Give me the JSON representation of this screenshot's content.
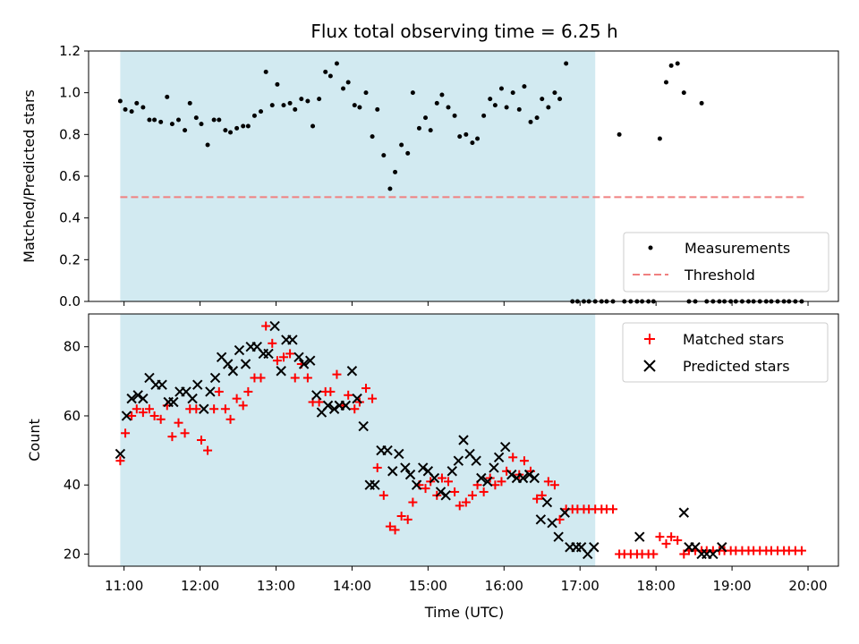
{
  "chart_data": [
    {
      "type": "scatter",
      "title": "Flux total observing time = 6.25 h",
      "xlabel": "",
      "ylabel": "Matched/Predicted stars",
      "xlim": [
        "10:32",
        "20:24"
      ],
      "ylim": [
        0,
        1.2
      ],
      "yticks": [
        "0.0",
        "0.2",
        "0.4",
        "0.6",
        "0.8",
        "1.0",
        "1.2"
      ],
      "shaded_region": {
        "start": "10:57",
        "end": "17:12",
        "color": "#add8e6"
      },
      "threshold": {
        "name": "Threshold",
        "value": 0.5,
        "start": "10:57",
        "end": "19:57",
        "color": "#f08080"
      },
      "legend": {
        "position": "bottom-right",
        "entries": [
          "Measurements",
          "Threshold"
        ]
      },
      "series": [
        {
          "name": "Measurements",
          "marker": "dot",
          "color": "#000000",
          "x": [
            "10:57",
            "11:01",
            "11:06",
            "11:10",
            "11:15",
            "11:20",
            "11:24",
            "11:29",
            "11:34",
            "11:38",
            "11:43",
            "11:48",
            "11:52",
            "11:57",
            "12:01",
            "12:06",
            "12:11",
            "12:15",
            "12:20",
            "12:24",
            "12:29",
            "12:34",
            "12:38",
            "12:43",
            "12:48",
            "12:52",
            "12:57",
            "13:01",
            "13:06",
            "13:11",
            "13:15",
            "13:20",
            "13:25",
            "13:29",
            "13:34",
            "13:39",
            "13:43",
            "13:48",
            "13:53",
            "13:57",
            "14:02",
            "14:06",
            "14:11",
            "14:16",
            "14:20",
            "14:25",
            "14:30",
            "14:34",
            "14:39",
            "14:44",
            "14:48",
            "14:53",
            "14:58",
            "15:02",
            "15:07",
            "15:11",
            "15:16",
            "15:21",
            "15:25",
            "15:30",
            "15:35",
            "15:39",
            "15:44",
            "15:49",
            "15:53",
            "15:58",
            "16:02",
            "16:07",
            "16:12",
            "16:16",
            "16:21",
            "16:26",
            "16:30",
            "16:35",
            "16:40",
            "16:44",
            "16:49",
            "16:54",
            "16:58",
            "17:03",
            "17:07",
            "17:12",
            "17:17",
            "17:21",
            "17:26",
            "17:31",
            "17:35",
            "17:40",
            "17:45",
            "17:49",
            "17:54",
            "17:58",
            "18:03",
            "18:08",
            "18:12",
            "18:17",
            "18:22",
            "18:26",
            "18:31",
            "18:36",
            "18:40",
            "18:45",
            "18:50",
            "18:54",
            "18:59",
            "19:03",
            "19:08",
            "19:13",
            "19:17",
            "19:22",
            "19:27",
            "19:31",
            "19:36",
            "19:41",
            "19:45",
            "19:50",
            "19:55"
          ],
          "y": [
            0.96,
            0.92,
            0.91,
            0.95,
            0.93,
            0.87,
            0.87,
            0.86,
            0.98,
            0.85,
            0.87,
            0.82,
            0.95,
            0.88,
            0.85,
            0.75,
            0.87,
            0.87,
            0.82,
            0.81,
            0.83,
            0.84,
            0.84,
            0.89,
            0.91,
            1.1,
            0.94,
            1.04,
            0.94,
            0.95,
            0.92,
            0.97,
            0.96,
            0.84,
            0.97,
            1.1,
            1.08,
            1.14,
            1.02,
            1.05,
            0.94,
            0.93,
            1.0,
            0.79,
            0.92,
            0.7,
            0.54,
            0.62,
            0.75,
            0.71,
            1.0,
            0.83,
            0.88,
            0.82,
            0.95,
            0.99,
            0.93,
            0.89,
            0.79,
            0.8,
            0.76,
            0.78,
            0.89,
            0.97,
            0.94,
            1.02,
            0.93,
            1.0,
            0.92,
            1.03,
            0.86,
            0.88,
            0.97,
            0.93,
            1.0,
            0.97,
            1.14,
            0.0,
            0.0,
            0.0,
            0.0,
            0.0,
            0.0,
            0.0,
            0.0,
            0.8,
            0.0,
            0.0,
            0.0,
            0.0,
            0.0,
            0.0,
            0.78,
            1.05,
            1.13,
            1.14,
            1.0,
            0.0,
            0.0,
            0.95,
            0.0,
            0.0,
            0.0,
            0.0,
            0.0,
            0.0,
            0.0,
            0.0,
            0.0,
            0.0,
            0.0,
            0.0,
            0.0,
            0.0,
            0.0,
            0.0,
            0.0
          ]
        }
      ]
    },
    {
      "type": "scatter",
      "title": "",
      "xlabel": "Time (UTC)",
      "ylabel": "Count",
      "xlim": [
        "10:32",
        "20:24"
      ],
      "ylim": [
        16.5,
        89.5
      ],
      "yticks": [
        "20",
        "40",
        "60",
        "80"
      ],
      "xticks": [
        "11:00",
        "12:00",
        "13:00",
        "14:00",
        "15:00",
        "16:00",
        "17:00",
        "18:00",
        "19:00",
        "20:00"
      ],
      "shaded_region": {
        "start": "10:57",
        "end": "17:12",
        "color": "#add8e6"
      },
      "legend": {
        "position": "top-right",
        "entries": [
          "Matched stars",
          "Predicted stars"
        ]
      },
      "series": [
        {
          "name": "Matched stars",
          "marker": "plus",
          "color": "#ff0000",
          "x": [
            "10:57",
            "11:01",
            "11:06",
            "11:10",
            "11:15",
            "11:20",
            "11:24",
            "11:29",
            "11:34",
            "11:38",
            "11:43",
            "11:48",
            "11:52",
            "11:57",
            "12:01",
            "12:06",
            "12:11",
            "12:15",
            "12:20",
            "12:24",
            "12:29",
            "12:34",
            "12:38",
            "12:43",
            "12:48",
            "12:52",
            "12:57",
            "13:01",
            "13:06",
            "13:11",
            "13:15",
            "13:20",
            "13:25",
            "13:29",
            "13:34",
            "13:39",
            "13:43",
            "13:48",
            "13:53",
            "13:57",
            "14:02",
            "14:06",
            "14:11",
            "14:16",
            "14:20",
            "14:25",
            "14:30",
            "14:34",
            "14:39",
            "14:44",
            "14:48",
            "14:53",
            "14:58",
            "15:02",
            "15:07",
            "15:11",
            "15:16",
            "15:21",
            "15:25",
            "15:30",
            "15:35",
            "15:39",
            "15:44",
            "15:49",
            "15:53",
            "15:58",
            "16:02",
            "16:07",
            "16:12",
            "16:16",
            "16:21",
            "16:26",
            "16:30",
            "16:35",
            "16:40",
            "16:44",
            "16:49",
            "16:54",
            "16:58",
            "17:03",
            "17:07",
            "17:12",
            "17:17",
            "17:21",
            "17:26",
            "17:31",
            "17:35",
            "17:40",
            "17:45",
            "17:49",
            "17:54",
            "17:58",
            "18:03",
            "18:08",
            "18:12",
            "18:17",
            "18:22",
            "18:26",
            "18:31",
            "18:36",
            "18:40",
            "18:45",
            "18:50",
            "18:54",
            "18:59",
            "19:03",
            "19:08",
            "19:13",
            "19:17",
            "19:22",
            "19:27",
            "19:31",
            "19:36",
            "19:41",
            "19:45",
            "19:50",
            "19:55"
          ],
          "y": [
            47,
            55,
            60,
            62,
            61,
            62,
            60,
            59,
            63,
            54,
            58,
            55,
            62,
            62,
            53,
            50,
            62,
            67,
            62,
            59,
            65,
            63,
            67,
            71,
            71,
            86,
            81,
            76,
            77,
            78,
            71,
            75,
            71,
            64,
            64,
            67,
            67,
            72,
            63,
            66,
            62,
            64,
            68,
            65,
            45,
            37,
            28,
            27,
            31,
            30,
            35,
            40,
            39,
            41,
            37,
            42,
            41,
            38,
            34,
            35,
            37,
            40,
            38,
            42,
            40,
            41,
            44,
            48,
            43,
            47,
            44,
            36,
            37,
            41,
            40,
            30,
            33,
            33,
            33,
            33,
            33,
            33,
            33,
            33,
            33,
            20,
            20,
            20,
            20,
            20,
            20,
            20,
            25,
            23,
            25,
            24,
            20,
            21,
            21,
            21,
            21,
            21,
            21,
            21,
            21,
            21,
            21,
            21,
            21,
            21,
            21,
            21,
            21,
            21,
            21,
            21,
            21
          ]
        },
        {
          "name": "Predicted stars",
          "marker": "x",
          "color": "#000000",
          "x": [
            "10:57",
            "11:02",
            "11:06",
            "11:11",
            "11:15",
            "11:20",
            "11:25",
            "11:30",
            "11:35",
            "11:39",
            "11:44",
            "11:49",
            "11:54",
            "11:58",
            "12:03",
            "12:08",
            "12:12",
            "12:17",
            "12:22",
            "12:26",
            "12:31",
            "12:36",
            "12:40",
            "12:45",
            "12:50",
            "12:54",
            "12:59",
            "13:04",
            "13:08",
            "13:13",
            "13:18",
            "13:22",
            "13:27",
            "13:32",
            "13:36",
            "13:41",
            "13:46",
            "13:50",
            "13:55",
            "14:00",
            "14:04",
            "14:09",
            "14:14",
            "14:18",
            "14:23",
            "14:28",
            "14:32",
            "14:37",
            "14:42",
            "14:46",
            "14:51",
            "14:56",
            "15:00",
            "15:05",
            "15:10",
            "15:14",
            "15:19",
            "15:24",
            "15:28",
            "15:33",
            "15:38",
            "15:42",
            "15:47",
            "15:52",
            "15:56",
            "16:01",
            "16:06",
            "16:10",
            "16:15",
            "16:20",
            "16:24",
            "16:29",
            "16:34",
            "16:38",
            "16:43",
            "16:48",
            "16:52",
            "16:57",
            "17:01",
            "17:06",
            "17:11",
            "17:47",
            "18:22",
            "18:26",
            "18:31",
            "18:36",
            "18:40",
            "18:45",
            "18:52"
          ],
          "y": [
            49,
            60,
            65,
            66,
            65,
            71,
            69,
            69,
            64,
            64,
            67,
            67,
            65,
            69,
            62,
            67,
            71,
            77,
            75,
            73,
            79,
            75,
            80,
            80,
            78,
            78,
            86,
            73,
            82,
            82,
            77,
            75,
            76,
            66,
            61,
            63,
            62,
            63,
            63,
            73,
            65,
            57,
            40,
            40,
            50,
            50,
            44,
            49,
            45,
            43,
            40,
            45,
            44,
            42,
            38,
            37,
            44,
            47,
            53,
            49,
            47,
            42,
            41,
            45,
            48,
            51,
            43,
            42,
            42,
            43,
            42,
            30,
            35,
            29,
            25,
            32,
            22,
            22,
            22,
            20,
            22,
            25,
            32,
            22,
            22,
            20,
            20,
            20,
            22
          ]
        }
      ]
    }
  ]
}
